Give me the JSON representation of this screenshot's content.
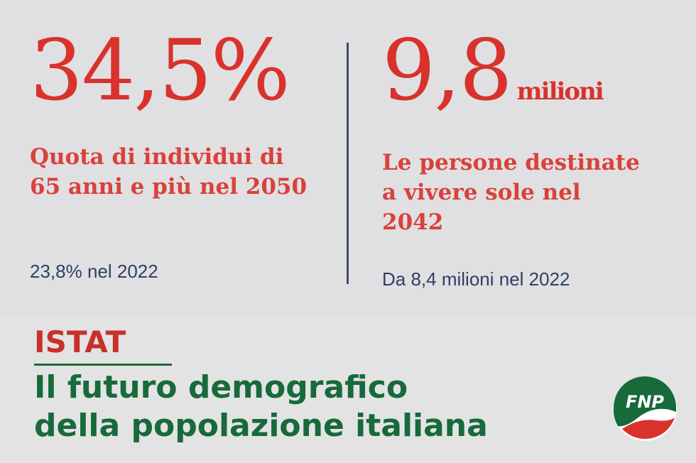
{
  "left_stat": {
    "value": "34,5%",
    "desc_line1": "Quota di individui di",
    "desc_line2": "65 anni e più nel 2050",
    "note": "23,8% nel 2022"
  },
  "right_stat": {
    "value": "9,8",
    "unit": "milioni",
    "desc_line1": "Le persone destinate",
    "desc_line2": "a vivere sole nel",
    "desc_line3": "2042",
    "note": "Da 8,4 milioni nel 2022"
  },
  "footer": {
    "source": "ISTAT",
    "headline_line1": "Il futuro demografico",
    "headline_line2": "della popolazione italiana"
  },
  "logo": {
    "text": "FNP"
  },
  "colors": {
    "accent_red": "#d9322c",
    "brand_green": "#176a3a",
    "note_blue": "#2f3f63"
  }
}
